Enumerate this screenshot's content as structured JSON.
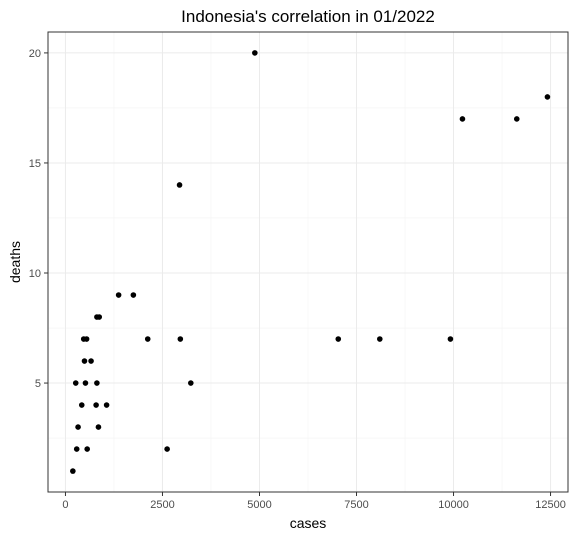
{
  "chart_data": {
    "type": "scatter",
    "title": "Indonesia's correlation in 01/2022",
    "xlabel": "cases",
    "ylabel": "deaths",
    "xlim": [
      -450,
      12950
    ],
    "ylim": [
      0.05,
      20.95
    ],
    "x_ticks": [
      0,
      2500,
      5000,
      7500,
      10000,
      12500
    ],
    "x_tick_labels": [
      "0",
      "2500",
      "5000",
      "7500",
      "10000",
      "12500"
    ],
    "y_ticks": [
      5,
      10,
      15,
      20
    ],
    "y_tick_labels": [
      "5",
      "10",
      "15",
      "20"
    ],
    "grid": true,
    "legend": "none",
    "point_color": "#000000",
    "points": [
      {
        "x": 190,
        "y": 1
      },
      {
        "x": 290,
        "y": 2
      },
      {
        "x": 265,
        "y": 5
      },
      {
        "x": 325,
        "y": 3
      },
      {
        "x": 420,
        "y": 4
      },
      {
        "x": 470,
        "y": 7
      },
      {
        "x": 490,
        "y": 6
      },
      {
        "x": 545,
        "y": 7
      },
      {
        "x": 515,
        "y": 5
      },
      {
        "x": 560,
        "y": 2
      },
      {
        "x": 660,
        "y": 6
      },
      {
        "x": 790,
        "y": 4
      },
      {
        "x": 810,
        "y": 5
      },
      {
        "x": 810,
        "y": 8
      },
      {
        "x": 870,
        "y": 8
      },
      {
        "x": 850,
        "y": 3
      },
      {
        "x": 1060,
        "y": 4
      },
      {
        "x": 1370,
        "y": 9
      },
      {
        "x": 1750,
        "y": 9
      },
      {
        "x": 2120,
        "y": 7
      },
      {
        "x": 2620,
        "y": 2
      },
      {
        "x": 2940,
        "y": 14
      },
      {
        "x": 2960,
        "y": 7
      },
      {
        "x": 3230,
        "y": 5
      },
      {
        "x": 4880,
        "y": 20
      },
      {
        "x": 7030,
        "y": 7
      },
      {
        "x": 8100,
        "y": 7
      },
      {
        "x": 9920,
        "y": 7
      },
      {
        "x": 10230,
        "y": 17
      },
      {
        "x": 11630,
        "y": 17
      },
      {
        "x": 12420,
        "y": 18
      }
    ]
  }
}
